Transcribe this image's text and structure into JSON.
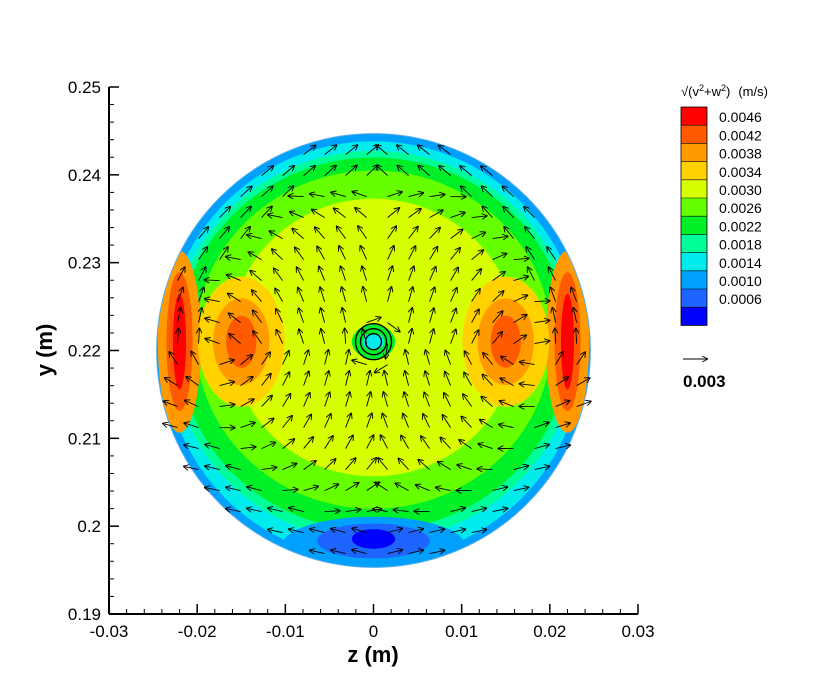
{
  "chart_data": {
    "type": "heatmap",
    "subtype": "contour-with-vector-field",
    "xlabel": "z  (m)",
    "ylabel": "y  (m)",
    "xlim": [
      -0.03,
      0.03
    ],
    "ylim": [
      0.19,
      0.25
    ],
    "x_ticks": [
      "-0.03",
      "-0.02",
      "-0.01",
      "0",
      "0.01",
      "0.02",
      "0.03"
    ],
    "x_tick_values": [
      -0.03,
      -0.02,
      -0.01,
      0,
      0.01,
      0.02,
      0.03
    ],
    "y_ticks": [
      "0.19",
      "0.2",
      "0.21",
      "0.22",
      "0.23",
      "0.24",
      "0.25"
    ],
    "y_tick_values": [
      0.19,
      0.2,
      0.21,
      0.22,
      0.23,
      0.24,
      0.25
    ],
    "domain": {
      "shape": "circle",
      "center": [
        0.0,
        0.22
      ],
      "radius": 0.0246
    },
    "vortex_center": [
      0.0,
      0.221
    ],
    "colorbar": {
      "title_main": "(v",
      "title_mid": "+w",
      "title_end": ")",
      "title_unit": "(m/s)",
      "title_exp": "2",
      "title_root": "√",
      "levels": [
        "0.0046",
        "0.0042",
        "0.0038",
        "0.0034",
        "0.0030",
        "0.0026",
        "0.0022",
        "0.0018",
        "0.0014",
        "0.0010",
        "0.0006"
      ],
      "level_values": [
        0.0046,
        0.0042,
        0.0038,
        0.0034,
        0.003,
        0.0026,
        0.0022,
        0.0018,
        0.0014,
        0.001,
        0.0006
      ],
      "colors": [
        "#ff0000",
        "#ff5a00",
        "#ff9a00",
        "#ffd200",
        "#d8ff00",
        "#66ff00",
        "#00f028",
        "#00ff99",
        "#00ecec",
        "#00a0ff",
        "#1e64ff",
        "#0000ff"
      ]
    },
    "magnitude_regions": [
      {
        "label": "right outer arc",
        "z": 0.022,
        "y": 0.221,
        "value": 0.0046
      },
      {
        "label": "left outer arc",
        "z": -0.022,
        "y": 0.221,
        "value": 0.0046
      },
      {
        "label": "right inner lobe",
        "z": 0.015,
        "y": 0.221,
        "value": 0.0042
      },
      {
        "label": "left inner lobe",
        "z": -0.015,
        "y": 0.221,
        "value": 0.0042
      },
      {
        "label": "core",
        "z": 0.0,
        "y": 0.221,
        "value": 0.0014
      },
      {
        "label": "bottom low region",
        "z": 0.0,
        "y": 0.199,
        "value": 0.0006
      }
    ],
    "reference_vector": {
      "value": "0.003"
    }
  }
}
